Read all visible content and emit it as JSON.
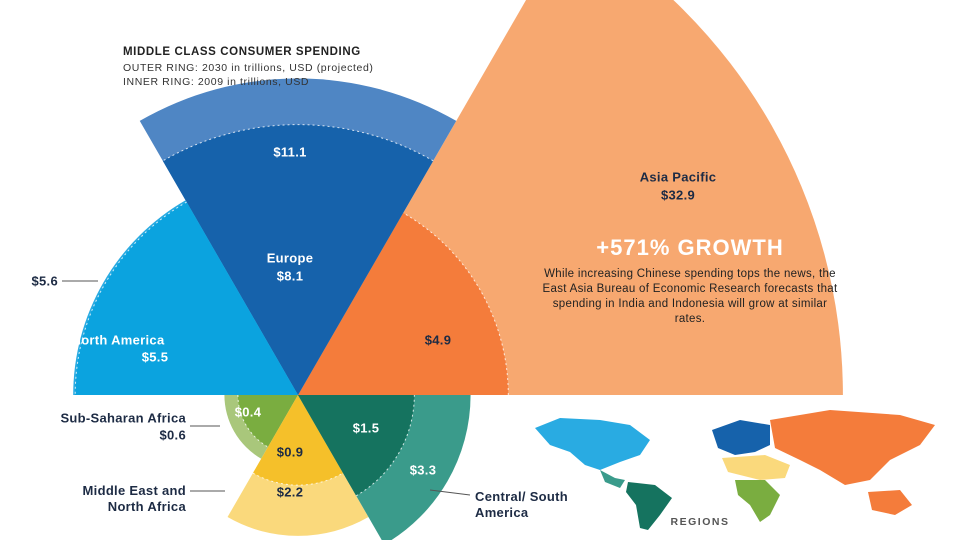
{
  "chart_data": {
    "type": "nested-polar-area",
    "title": "MIDDLE CLASS CONSUMER SPENDING",
    "categories": [
      "Asia Pacific",
      "Europe",
      "North America",
      "Sub-Saharan Africa",
      "Middle East and North Africa",
      "Central/ South America"
    ],
    "series": [
      {
        "name": "OUTER RING: 2030 in trillions, USD (projected)",
        "values": [
          32.9,
          11.1,
          5.6,
          0.6,
          2.2,
          3.3
        ],
        "value_labels": [
          "$32.9",
          "$11.1",
          "$5.6",
          "$0.6",
          "$2.2",
          "$3.3"
        ],
        "colors": [
          "#f7a870",
          "#4f86c4",
          "#29abe2",
          "#a9c77b",
          "#fad97c",
          "#3a9b8b"
        ]
      },
      {
        "name": "INNER RING: 2009 in trillions, USD",
        "values": [
          4.9,
          8.1,
          5.5,
          0.4,
          0.9,
          1.5
        ],
        "value_labels": [
          "$4.9",
          "$8.1",
          "$5.5",
          "$0.4",
          "$0.9",
          "$1.5"
        ],
        "colors": [
          "#f47c3b",
          "#1662ab",
          "#0ba3df",
          "#7aad40",
          "#f5c02a",
          "#15735f"
        ]
      }
    ],
    "annotations": [
      "+571% GROWTH",
      "While increasing Chinese spending tops the news, the East Asia Bureau of Economic Research forecasts that spending in India and Indonesia will grow at similar rates.",
      "REGIONS"
    ]
  }
}
